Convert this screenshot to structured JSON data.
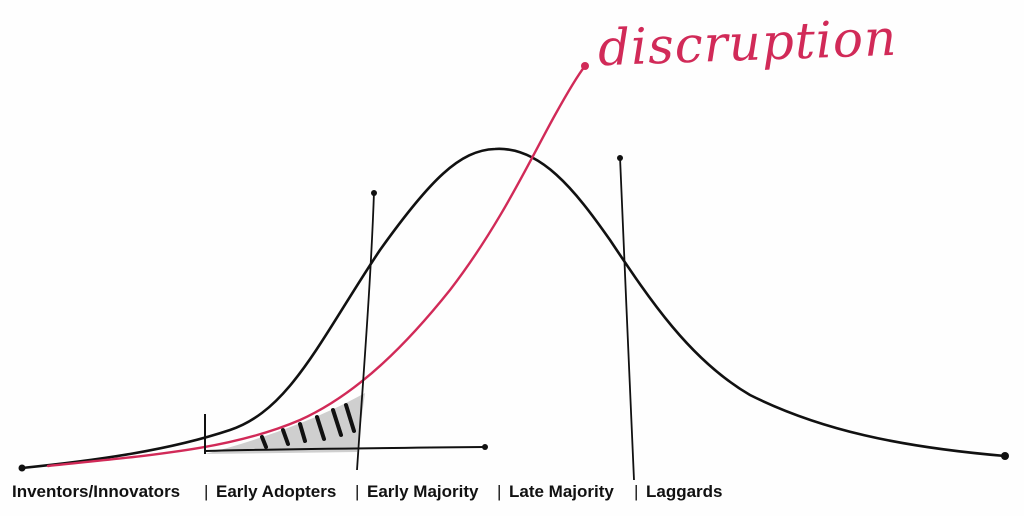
{
  "annotation": {
    "text": "discruption",
    "color": "#d12a58"
  },
  "categories": [
    "Inventors/Innovators",
    "Early Adopters",
    "Early Majority",
    "Late Majority",
    "Laggards"
  ],
  "separator": "|",
  "colors": {
    "ink": "#111111",
    "accent": "#d12a58",
    "shade": "#cccccc"
  }
}
